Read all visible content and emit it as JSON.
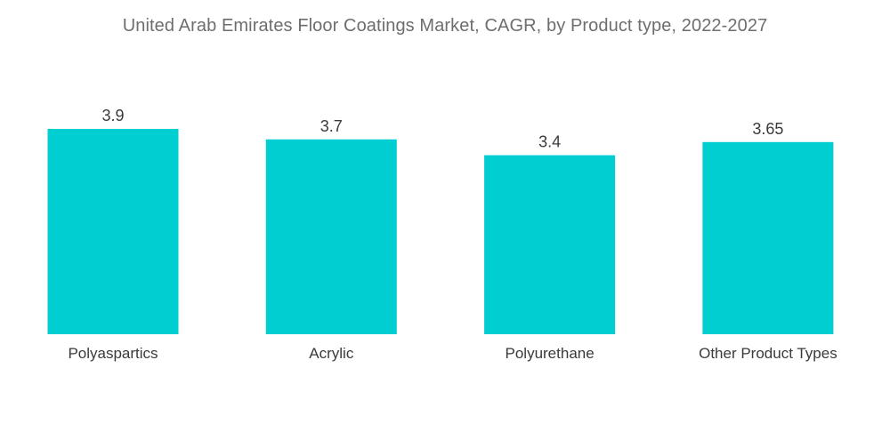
{
  "chart_data": {
    "type": "bar",
    "title": "United Arab Emirates Floor Coatings Market, CAGR, by Product type, 2022-2027",
    "xlabel": "",
    "ylabel": "",
    "categories": [
      "Polyaspartics",
      "Acrylic",
      "Polyurethane",
      "Other Product Types"
    ],
    "values": [
      3.9,
      3.7,
      3.4,
      3.65
    ],
    "value_labels": [
      "3.9",
      "3.7",
      "3.4",
      "3.65"
    ],
    "ylim": [
      0,
      3.9
    ],
    "grid": false,
    "legend": "none",
    "bar_color": "#00CED1"
  }
}
